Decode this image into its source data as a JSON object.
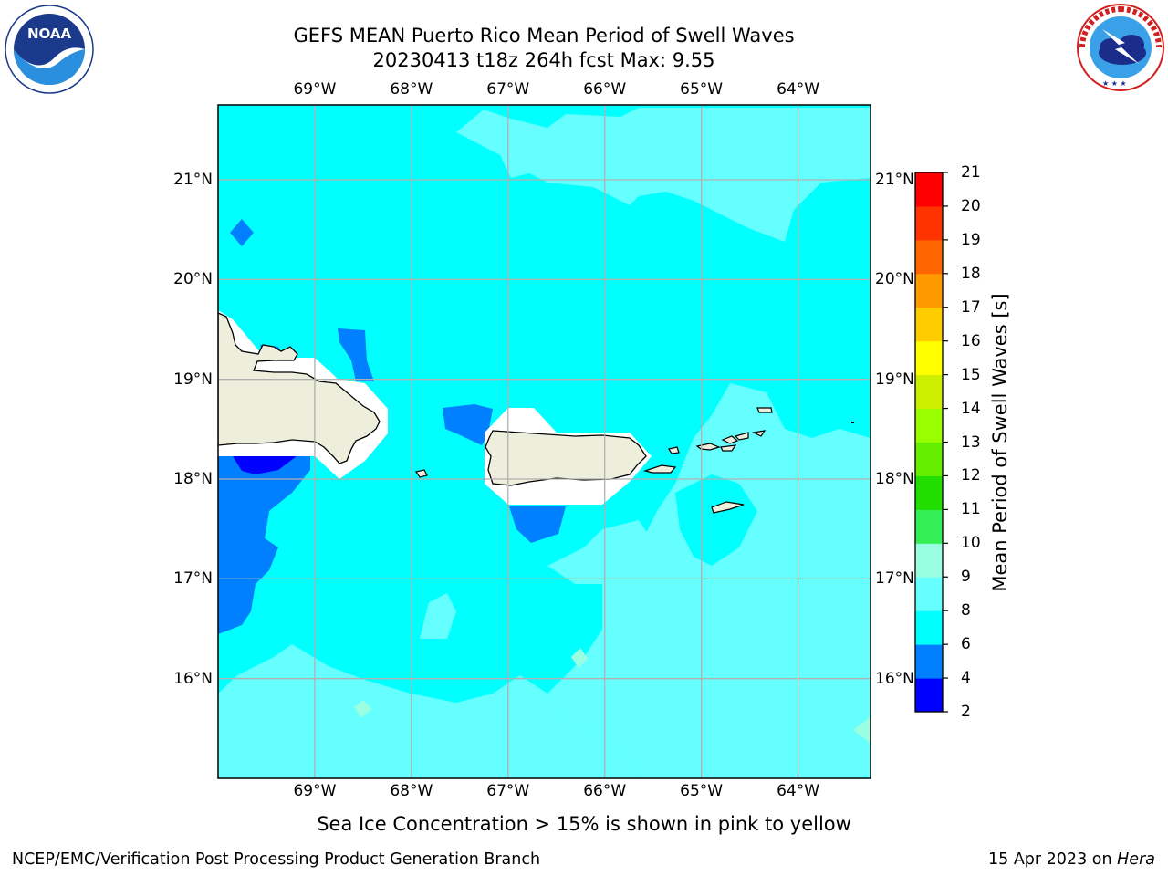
{
  "header": {
    "title_line1": "GEFS MEAN Puerto Rico Mean Period of Swell Waves",
    "title_line2": "20230413 t18z 264h fcst   Max: 9.55"
  },
  "logos": {
    "left": {
      "name": "noaa-logo",
      "text": "NOAA",
      "ring_text": "NATIONAL OCEANIC AND ATMOSPHERIC ADMINISTRATION · U.S. DEPARTMENT OF COMMERCE"
    },
    "right": {
      "name": "nws-logo",
      "ring_text": "NATIONAL WEATHER SERVICE"
    }
  },
  "map": {
    "lon_labels": [
      "69°W",
      "68°W",
      "67°W",
      "66°W",
      "65°W",
      "64°W"
    ],
    "lat_labels": [
      "21°N",
      "20°N",
      "19°N",
      "18°N",
      "17°N",
      "16°N"
    ],
    "lon_values": [
      -69,
      -68,
      -67,
      -66,
      -65,
      -64
    ],
    "lat_values": [
      21,
      20,
      19,
      18,
      17,
      16
    ],
    "lon_range": [
      -70,
      -63.25
    ],
    "lat_range": [
      15,
      21.75
    ],
    "grid": true,
    "colors": {
      "band_2_4": "#0000ff",
      "band_4_6": "#0080ff",
      "band_6_8": "#00ffff",
      "band_8_9": "#66ffff",
      "land": "#eeeedc",
      "gridline": "#b0b0b0"
    }
  },
  "colorbar": {
    "label": "Mean Period of Swell Waves [s]",
    "ticks": [
      "2",
      "4",
      "6",
      "8",
      "9",
      "10",
      "11",
      "12",
      "13",
      "14",
      "15",
      "16",
      "17",
      "18",
      "19",
      "20",
      "21"
    ],
    "colors": [
      "#0000ff",
      "#0080ff",
      "#00ffff",
      "#66ffff",
      "#99ffe0",
      "#33ee55",
      "#22dd00",
      "#66ee00",
      "#99ff00",
      "#ccee00",
      "#ffff00",
      "#ffcc00",
      "#ff9900",
      "#ff6600",
      "#ff3300",
      "#ff0000"
    ]
  },
  "caption": "Sea Ice Concentration > 15% is shown in pink to yellow",
  "footer": {
    "left": "NCEP/EMC/Verification Post Processing Product Generation Branch",
    "right_prefix": "15 Apr 2023 on ",
    "right_host": "Hera"
  }
}
